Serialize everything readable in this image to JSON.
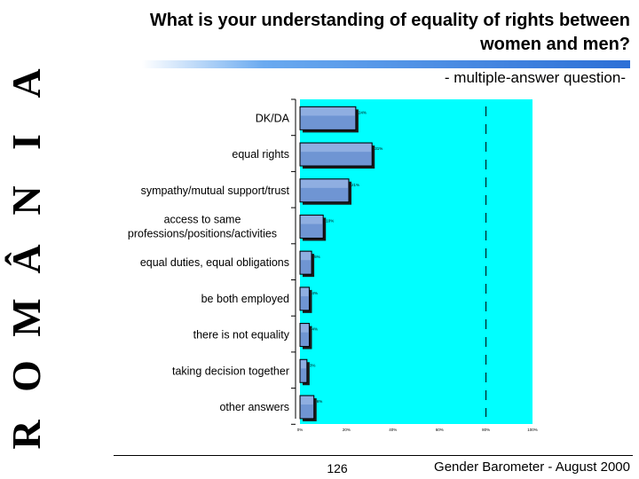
{
  "side_title": [
    "R",
    "O",
    "M",
    "Â",
    "N",
    "I",
    "A"
  ],
  "title": "What is your understanding of equality of rights between women and men?",
  "title_line1": "What is your understanding of equality of rights between",
  "title_line2": "women and men?",
  "subtitle": "- multiple-answer question-",
  "footer": {
    "page": "126",
    "source": "Gender Barometer - August 2000"
  },
  "colors": {
    "plot_bg": "#00ffff",
    "bar": "#6f95d3",
    "bar_shadow": "#1a1a1a",
    "title_rule": "#2c6fd6"
  },
  "chart_data": {
    "type": "bar",
    "orientation": "horizontal",
    "categories": [
      "DK/DA",
      "equal rights",
      "sympathy/mutual support/trust",
      "access to same professions/positions/activities",
      "equal duties, equal obligations",
      "be both employed",
      "there is not equality",
      "taking decision together",
      "other answers"
    ],
    "category_lines": [
      [
        "DK/DA"
      ],
      [
        "equal rights"
      ],
      [
        "sympathy/mutual support/trust"
      ],
      [
        "access to same",
        "professions/positions/activities"
      ],
      [
        "equal duties, equal obligations"
      ],
      [
        "be both employed"
      ],
      [
        "there is not equality"
      ],
      [
        "taking decision together"
      ],
      [
        "other answers"
      ]
    ],
    "values": [
      24,
      31,
      21,
      10,
      5,
      4,
      4,
      3,
      6
    ],
    "value_labels": [
      "24%",
      "31%",
      "21%",
      "10%",
      "5%",
      "4%",
      "4%",
      "3%",
      "6%"
    ],
    "xlim": [
      0,
      100
    ],
    "x_ticks": [
      "0%",
      "20%",
      "40%",
      "60%",
      "80%",
      "100%"
    ],
    "reference_line_x": 80,
    "grid": false
  }
}
